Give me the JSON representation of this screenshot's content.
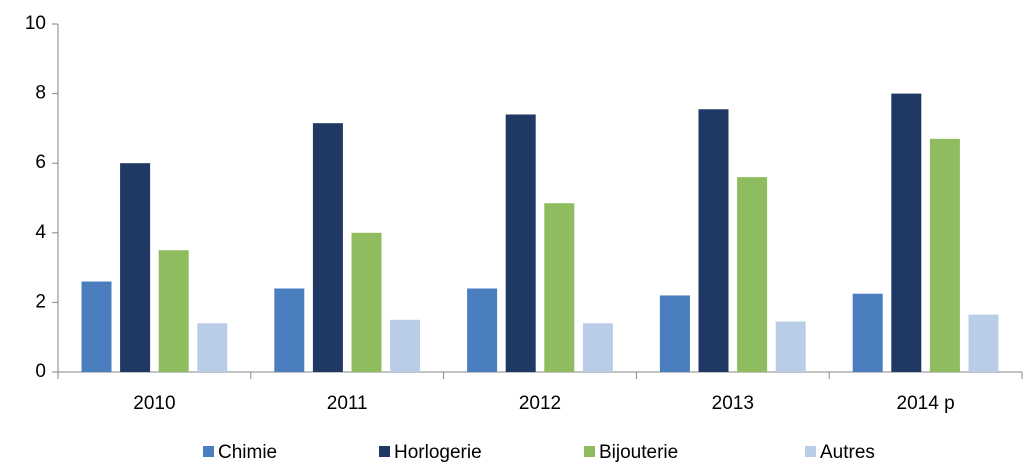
{
  "chart_data": {
    "type": "bar",
    "categories": [
      "2010",
      "2011",
      "2012",
      "2013",
      "2014 p"
    ],
    "series": [
      {
        "name": "Chimie",
        "color": "#4a7ebf",
        "values": [
          2.6,
          2.4,
          2.4,
          2.2,
          2.25
        ]
      },
      {
        "name": "Horlogerie",
        "color": "#1f3864",
        "values": [
          6.0,
          7.15,
          7.4,
          7.55,
          8.0
        ]
      },
      {
        "name": "Bijouterie",
        "color": "#8fbc5f",
        "values": [
          3.5,
          4.0,
          4.85,
          5.6,
          6.7
        ]
      },
      {
        "name": "Autres",
        "color": "#b9cde9",
        "values": [
          1.4,
          1.5,
          1.4,
          1.45,
          1.65
        ]
      }
    ],
    "ylim": [
      0,
      10
    ],
    "yticks": [
      0,
      2,
      4,
      6,
      8,
      10
    ],
    "grid": false,
    "legend": "bottom"
  }
}
